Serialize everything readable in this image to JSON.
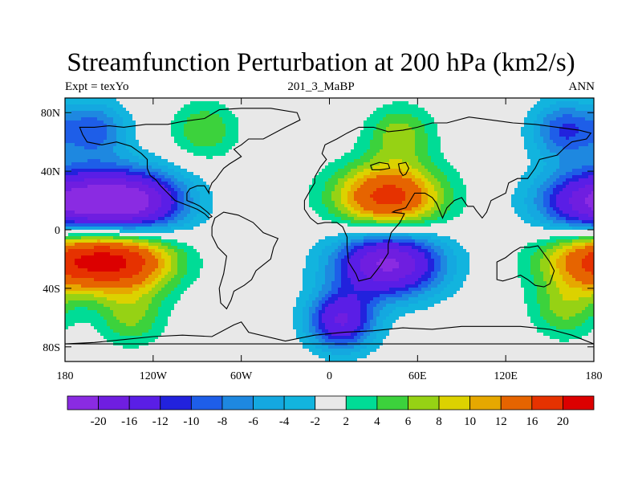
{
  "chart_data": {
    "type": "heatmap",
    "title": "Streamfunction Perturbation at 200 hPa (km2/s)",
    "left_subtitle": "Expt = texYo",
    "center_subtitle": "201_3_MaBP",
    "right_subtitle": "ANN",
    "xlim": [
      -180,
      180
    ],
    "ylim": [
      -90,
      90
    ],
    "x_ticks": [
      {
        "value": -180,
        "label": "180"
      },
      {
        "value": -120,
        "label": "120W"
      },
      {
        "value": -60,
        "label": "60W"
      },
      {
        "value": 0,
        "label": "0"
      },
      {
        "value": 60,
        "label": "60E"
      },
      {
        "value": 120,
        "label": "120E"
      },
      {
        "value": 180,
        "label": "180"
      }
    ],
    "y_ticks": [
      {
        "value": 80,
        "label": "80N"
      },
      {
        "value": 40,
        "label": "40N"
      },
      {
        "value": 0,
        "label": "0"
      },
      {
        "value": -40,
        "label": "40S"
      },
      {
        "value": -80,
        "label": "80S"
      }
    ],
    "colorbar": {
      "labels": [
        "-20",
        "-16",
        "-12",
        "-10",
        "-8",
        "-6",
        "-4",
        "-2",
        "2",
        "4",
        "6",
        "8",
        "10",
        "12",
        "16",
        "20"
      ],
      "colors": [
        "#8a2be2",
        "#6f1ee0",
        "#5a1ee6",
        "#2222dd",
        "#1e5ee8",
        "#1e88e0",
        "#14a8e0",
        "#12b4de",
        "#e8e8e8",
        "#00dc96",
        "#3cd23c",
        "#96d214",
        "#dcd200",
        "#e6a800",
        "#e66400",
        "#e63200",
        "#dc0000"
      ]
    },
    "field_centers": [
      {
        "lon": -135,
        "lat": 18,
        "value": -22
      },
      {
        "lon": 178,
        "lat": 18,
        "value": -18
      },
      {
        "lon": -140,
        "lat": -20,
        "value": 18
      },
      {
        "lon": 178,
        "lat": -20,
        "value": 14
      },
      {
        "lon": 40,
        "lat": 22,
        "value": 18
      },
      {
        "lon": 48,
        "lat": 65,
        "value": 7
      },
      {
        "lon": -85,
        "lat": 68,
        "value": 6
      },
      {
        "lon": 40,
        "lat": -23,
        "value": -21
      },
      {
        "lon": 8,
        "lat": -62,
        "value": -16
      },
      {
        "lon": -135,
        "lat": -60,
        "value": 6
      },
      {
        "lon": 160,
        "lat": -55,
        "value": 6
      },
      {
        "lon": -160,
        "lat": 68,
        "value": -9
      },
      {
        "lon": 160,
        "lat": 68,
        "value": -10
      }
    ],
    "grid": false,
    "legend_position": "bottom"
  }
}
